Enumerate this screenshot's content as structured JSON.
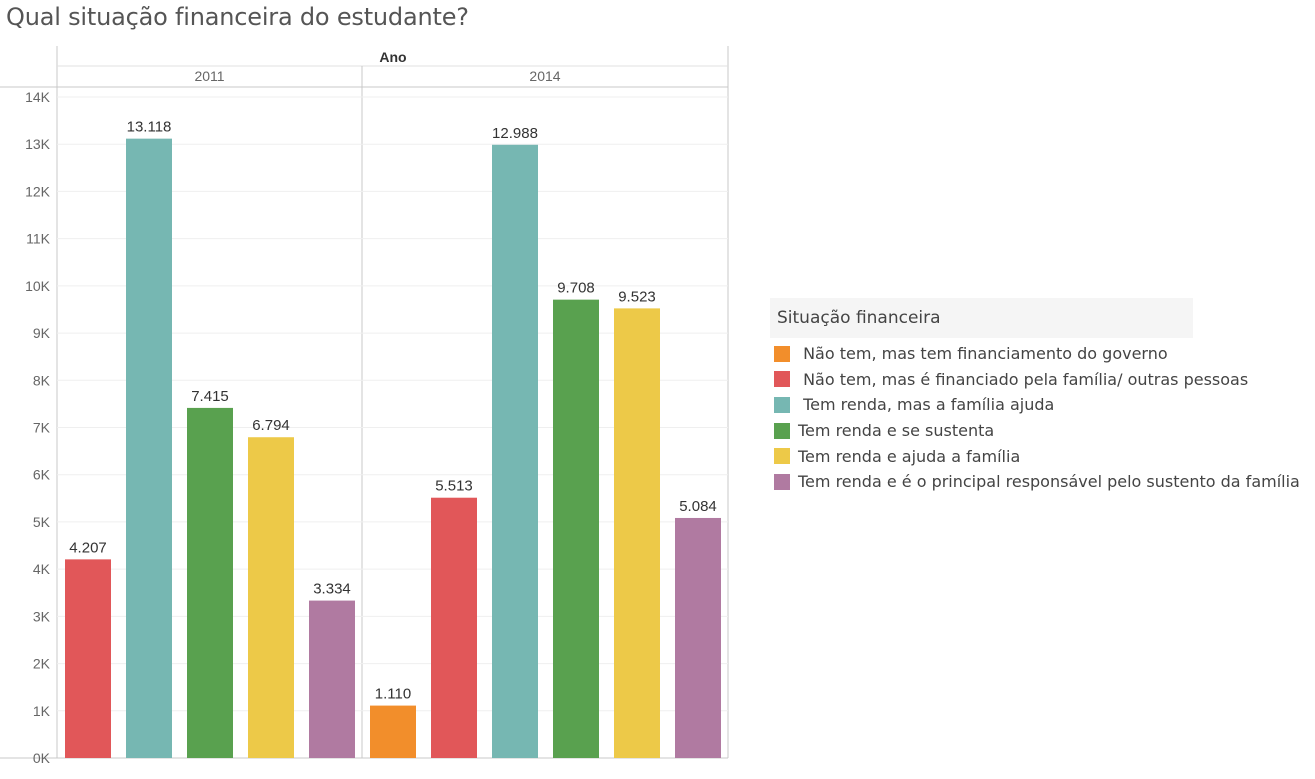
{
  "title": "Qual situação financeira do estudante?",
  "chart_data": {
    "type": "bar",
    "column_header": "Ano",
    "panels": [
      "2011",
      "2014"
    ],
    "categories": [
      " Não tem, mas tem financiamento do governo",
      " Não tem, mas é financiado pela família/ outras pessoas",
      " Tem renda, mas a família ajuda",
      "Tem renda e se sustenta",
      "Tem renda e ajuda a família",
      "Tem renda e é o principal responsável pelo sustento da família"
    ],
    "colors": [
      "#f28e2b",
      "#e15759",
      "#76b7b2",
      "#59a14f",
      "#edc948",
      "#b07aa1"
    ],
    "values": {
      "2011": [
        null,
        4207,
        13118,
        7415,
        6794,
        3334
      ],
      "2014": [
        1110,
        5513,
        12988,
        9708,
        9523,
        5084
      ]
    },
    "value_labels": {
      "2011": [
        null,
        "4.207",
        "13.118",
        "7.415",
        "6.794",
        "3.334"
      ],
      "2014": [
        "1.110",
        "5.513",
        "12.988",
        "9.708",
        "9.523",
        "5.084"
      ]
    },
    "ylim": [
      0,
      14000
    ],
    "y_ticks": [
      "0K",
      "1K",
      "2K",
      "3K",
      "4K",
      "5K",
      "6K",
      "7K",
      "8K",
      "9K",
      "10K",
      "11K",
      "12K",
      "13K",
      "14K"
    ],
    "grid": true,
    "legend_title": "Situação financeira",
    "legend_position": "right"
  }
}
